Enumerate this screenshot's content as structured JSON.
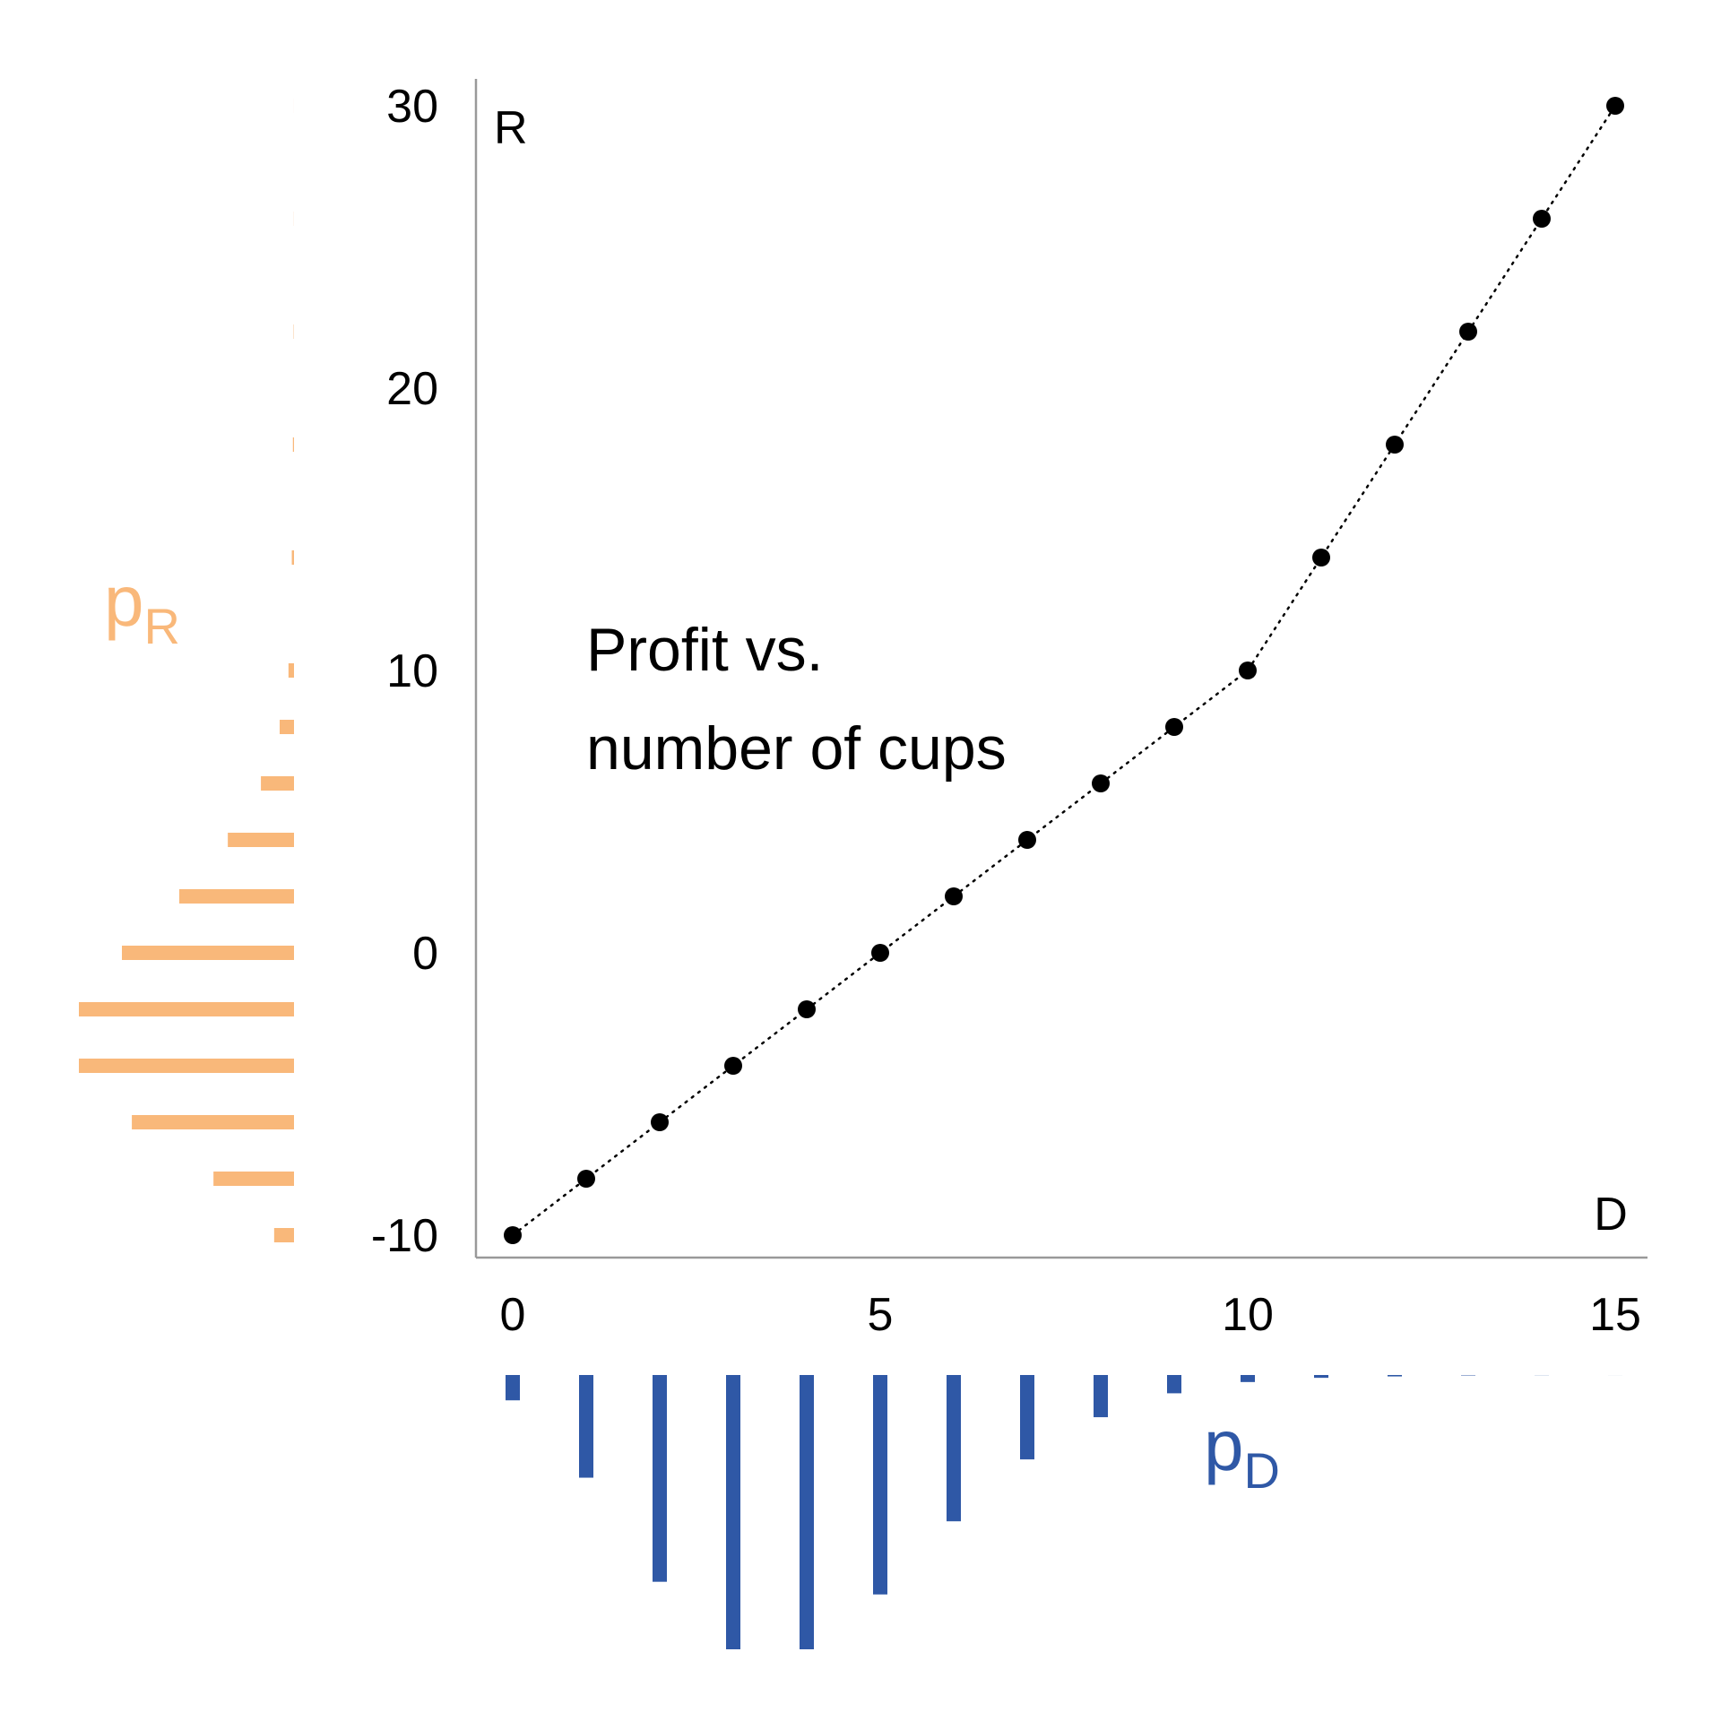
{
  "chart_data": {
    "type": "scatter",
    "annotation": [
      "Profit vs.",
      "number of cups"
    ],
    "xlabel": "D",
    "ylabel": "R",
    "xlim": [
      0,
      15
    ],
    "ylim": [
      -10,
      30
    ],
    "x_ticks": [
      "0",
      "5",
      "10",
      "15"
    ],
    "y_ticks": [
      "-10",
      "0",
      "10",
      "20",
      "30"
    ],
    "grid": false,
    "connector": "dotted",
    "series": [
      {
        "x": [
          0,
          1,
          2,
          3,
          4,
          5,
          6,
          7,
          8,
          9,
          10,
          11,
          12,
          13,
          14,
          15
        ],
        "y": [
          -10,
          -8,
          -6,
          -4,
          -2,
          0,
          2,
          4,
          6,
          8,
          10,
          14,
          18,
          22,
          26,
          30
        ]
      }
    ],
    "marginal_D": {
      "label_main": "p",
      "label_sub": "D",
      "color": "#2f58a6",
      "x": [
        0,
        1,
        2,
        3,
        4,
        5,
        6,
        7,
        8,
        9,
        10,
        11,
        12,
        13,
        14,
        15
      ],
      "p": [
        0.018,
        0.073,
        0.147,
        0.195,
        0.195,
        0.156,
        0.104,
        0.06,
        0.03,
        0.013,
        0.005,
        0.002,
        0.001,
        0.0003,
        0.0001,
        3e-05
      ]
    },
    "marginal_R": {
      "label_main": "p",
      "label_sub": "R",
      "color": "#f9b87a",
      "r": [
        -10,
        -8,
        -6,
        -4,
        -2,
        0,
        2,
        4,
        6,
        8,
        10,
        14,
        18,
        22,
        26,
        30
      ],
      "p": [
        0.018,
        0.073,
        0.147,
        0.195,
        0.195,
        0.156,
        0.104,
        0.06,
        0.03,
        0.013,
        0.005,
        0.002,
        0.001,
        0.0003,
        0.0001,
        3e-05
      ]
    }
  }
}
